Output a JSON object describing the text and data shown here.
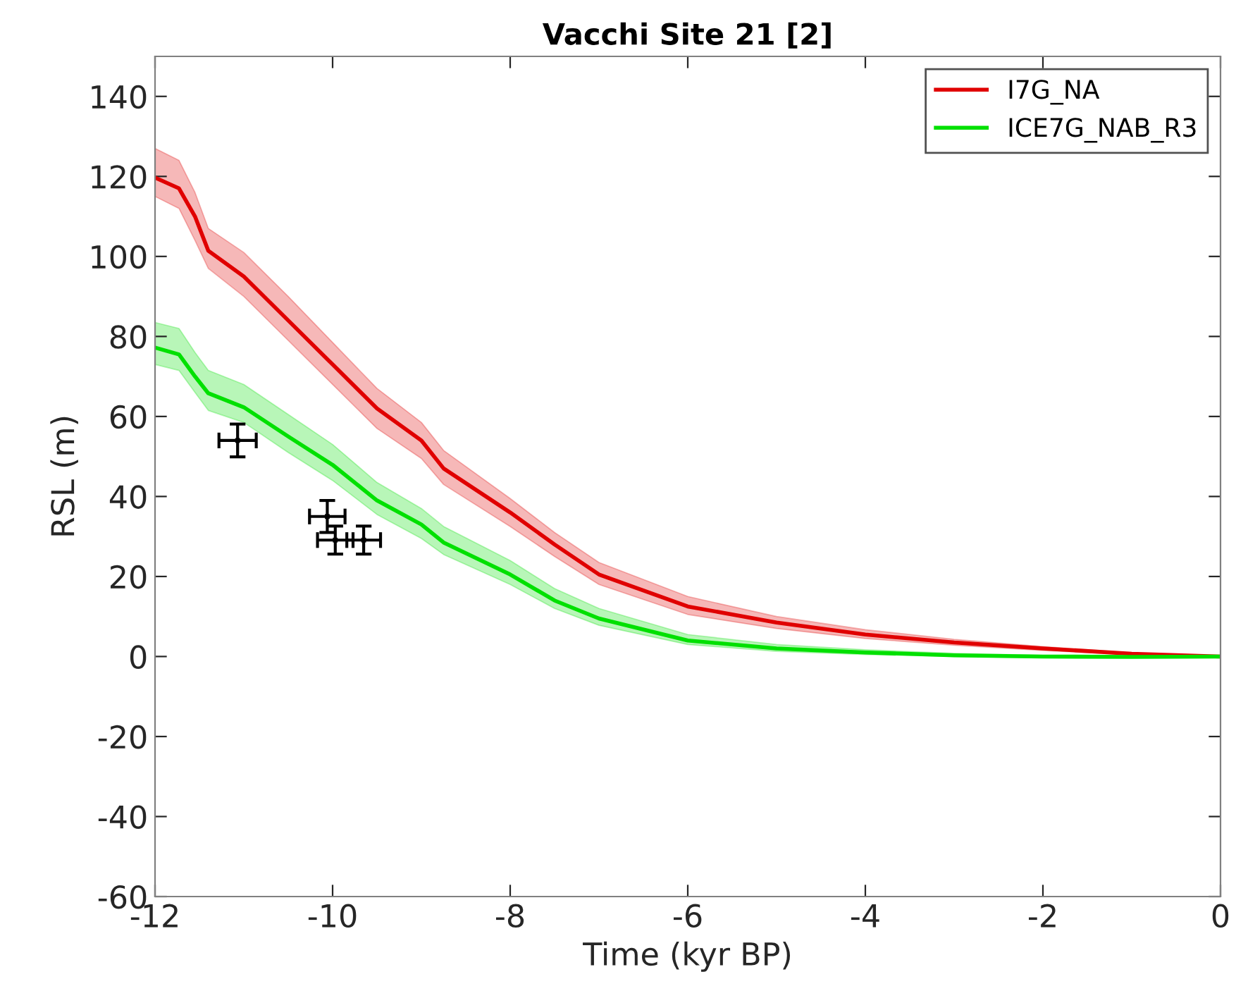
{
  "chart_data": {
    "type": "line",
    "title": "Vacchi Site 21 [2]",
    "xlabel": "Time (kyr BP)",
    "ylabel": "RSL (m)",
    "xlim": [
      -12,
      0
    ],
    "ylim": [
      -60,
      150
    ],
    "xticks": [
      -12,
      -10,
      -8,
      -6,
      -4,
      -2,
      0
    ],
    "yticks": [
      -60,
      -40,
      -20,
      0,
      20,
      40,
      60,
      80,
      100,
      120,
      140
    ],
    "grid": false,
    "legend": "top right",
    "line_style": "solid",
    "x": [
      -12,
      -11.73,
      -11.55,
      -11.4,
      -11,
      -10.5,
      -10,
      -9.5,
      -9,
      -8.75,
      -8,
      -7.5,
      -7,
      -6,
      -5,
      -4,
      -3,
      -2,
      -1,
      0
    ],
    "series": [
      {
        "name": "I7G_NA",
        "color": "#e00000",
        "values": [
          119.7,
          117,
          110,
          101.4,
          95,
          84,
          73,
          62,
          54,
          47,
          36,
          28,
          20.5,
          12.5,
          8.5,
          5.5,
          3.5,
          2,
          0.7,
          0
        ],
        "upper": [
          127,
          124,
          116,
          107,
          101,
          90,
          78.5,
          67,
          58.5,
          51.5,
          39.5,
          31,
          23.5,
          15,
          10,
          6.7,
          4.3,
          2.5,
          0.9,
          0
        ],
        "lower": [
          115,
          112,
          104,
          97,
          90,
          79,
          68,
          57,
          49.5,
          43,
          32.5,
          25,
          18,
          10.5,
          7,
          4.5,
          2.8,
          1.5,
          0.5,
          0
        ]
      },
      {
        "name": "ICE7G_NAB_R3",
        "color": "#00e000",
        "values": [
          77.2,
          75.5,
          70,
          65.8,
          62.3,
          55,
          47.9,
          39,
          33,
          28.5,
          20.5,
          14,
          9.5,
          4,
          2,
          1,
          0.3,
          0,
          -0.1,
          0
        ],
        "upper": [
          83.5,
          82,
          76,
          71.5,
          68,
          60.5,
          53,
          43.5,
          37,
          32.5,
          24,
          17,
          12,
          5.5,
          3,
          1.7,
          0.8,
          0.3,
          0.1,
          0
        ],
        "lower": [
          73,
          71.5,
          66,
          61.5,
          58.5,
          51,
          44,
          35.5,
          29.5,
          25.5,
          18,
          12,
          7.8,
          3,
          1.3,
          0.5,
          0,
          -0.3,
          -0.3,
          0
        ]
      },
      {
        "type": "scatter",
        "color": "#000000",
        "x": [
          -11.07,
          -10.06,
          -9.97,
          -9.65
        ],
        "values": [
          54,
          35,
          29.1,
          29.1
        ],
        "errors": [
          4.1,
          4,
          3.5,
          3.5
        ],
        "xerrors": [
          0.21,
          0.2,
          0.2,
          0.19
        ]
      }
    ]
  }
}
